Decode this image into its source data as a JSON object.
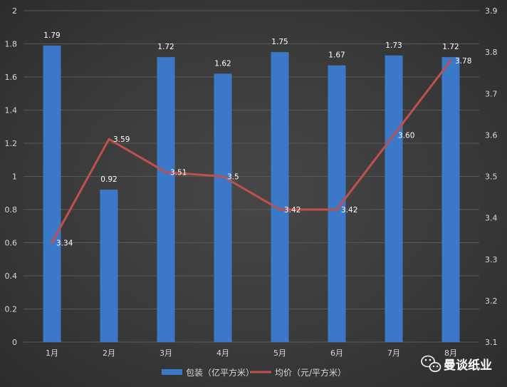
{
  "chart_data": {
    "type": "bar+line",
    "categories": [
      "1月",
      "2月",
      "3月",
      "4月",
      "5月",
      "6月",
      "7月",
      "8月"
    ],
    "series": [
      {
        "name": "包装（亿平方米）",
        "type": "bar",
        "axis": "left",
        "color": "#3b78c8",
        "values": [
          1.79,
          0.92,
          1.72,
          1.62,
          1.75,
          1.67,
          1.73,
          1.72
        ],
        "labels": [
          "1.79",
          "0.92",
          "1.72",
          "1.62",
          "1.75",
          "1.67",
          "1.73",
          "1.72"
        ]
      },
      {
        "name": "均价（元/平方米）",
        "type": "line",
        "axis": "right",
        "color": "#c0504d",
        "values": [
          3.34,
          3.59,
          3.51,
          3.5,
          3.42,
          3.42,
          3.6,
          3.78
        ],
        "labels": [
          "3.34",
          "3.59",
          "3.51",
          "3.5",
          "3.42",
          "3.42",
          "3.60",
          "3.78"
        ]
      }
    ],
    "y_left": {
      "min": 0,
      "max": 2,
      "ticks": [
        "0",
        "0.2",
        "0.4",
        "0.6",
        "0.8",
        "1",
        "1.2",
        "1.4",
        "1.6",
        "1.8",
        "2"
      ]
    },
    "y_right": {
      "min": 3.1,
      "max": 3.9,
      "ticks": [
        "3.1",
        "3.2",
        "3.3",
        "3.4",
        "3.5",
        "3.6",
        "3.7",
        "3.8",
        "3.9"
      ]
    },
    "grid": true,
    "legend": "bottom"
  },
  "watermark": {
    "text": "曼谈纸业",
    "icon": "wechat-icon"
  },
  "colors": {
    "bar": "#3b78c8",
    "line": "#c0504d",
    "grid": "#595959",
    "text": "#d9d9d9"
  }
}
